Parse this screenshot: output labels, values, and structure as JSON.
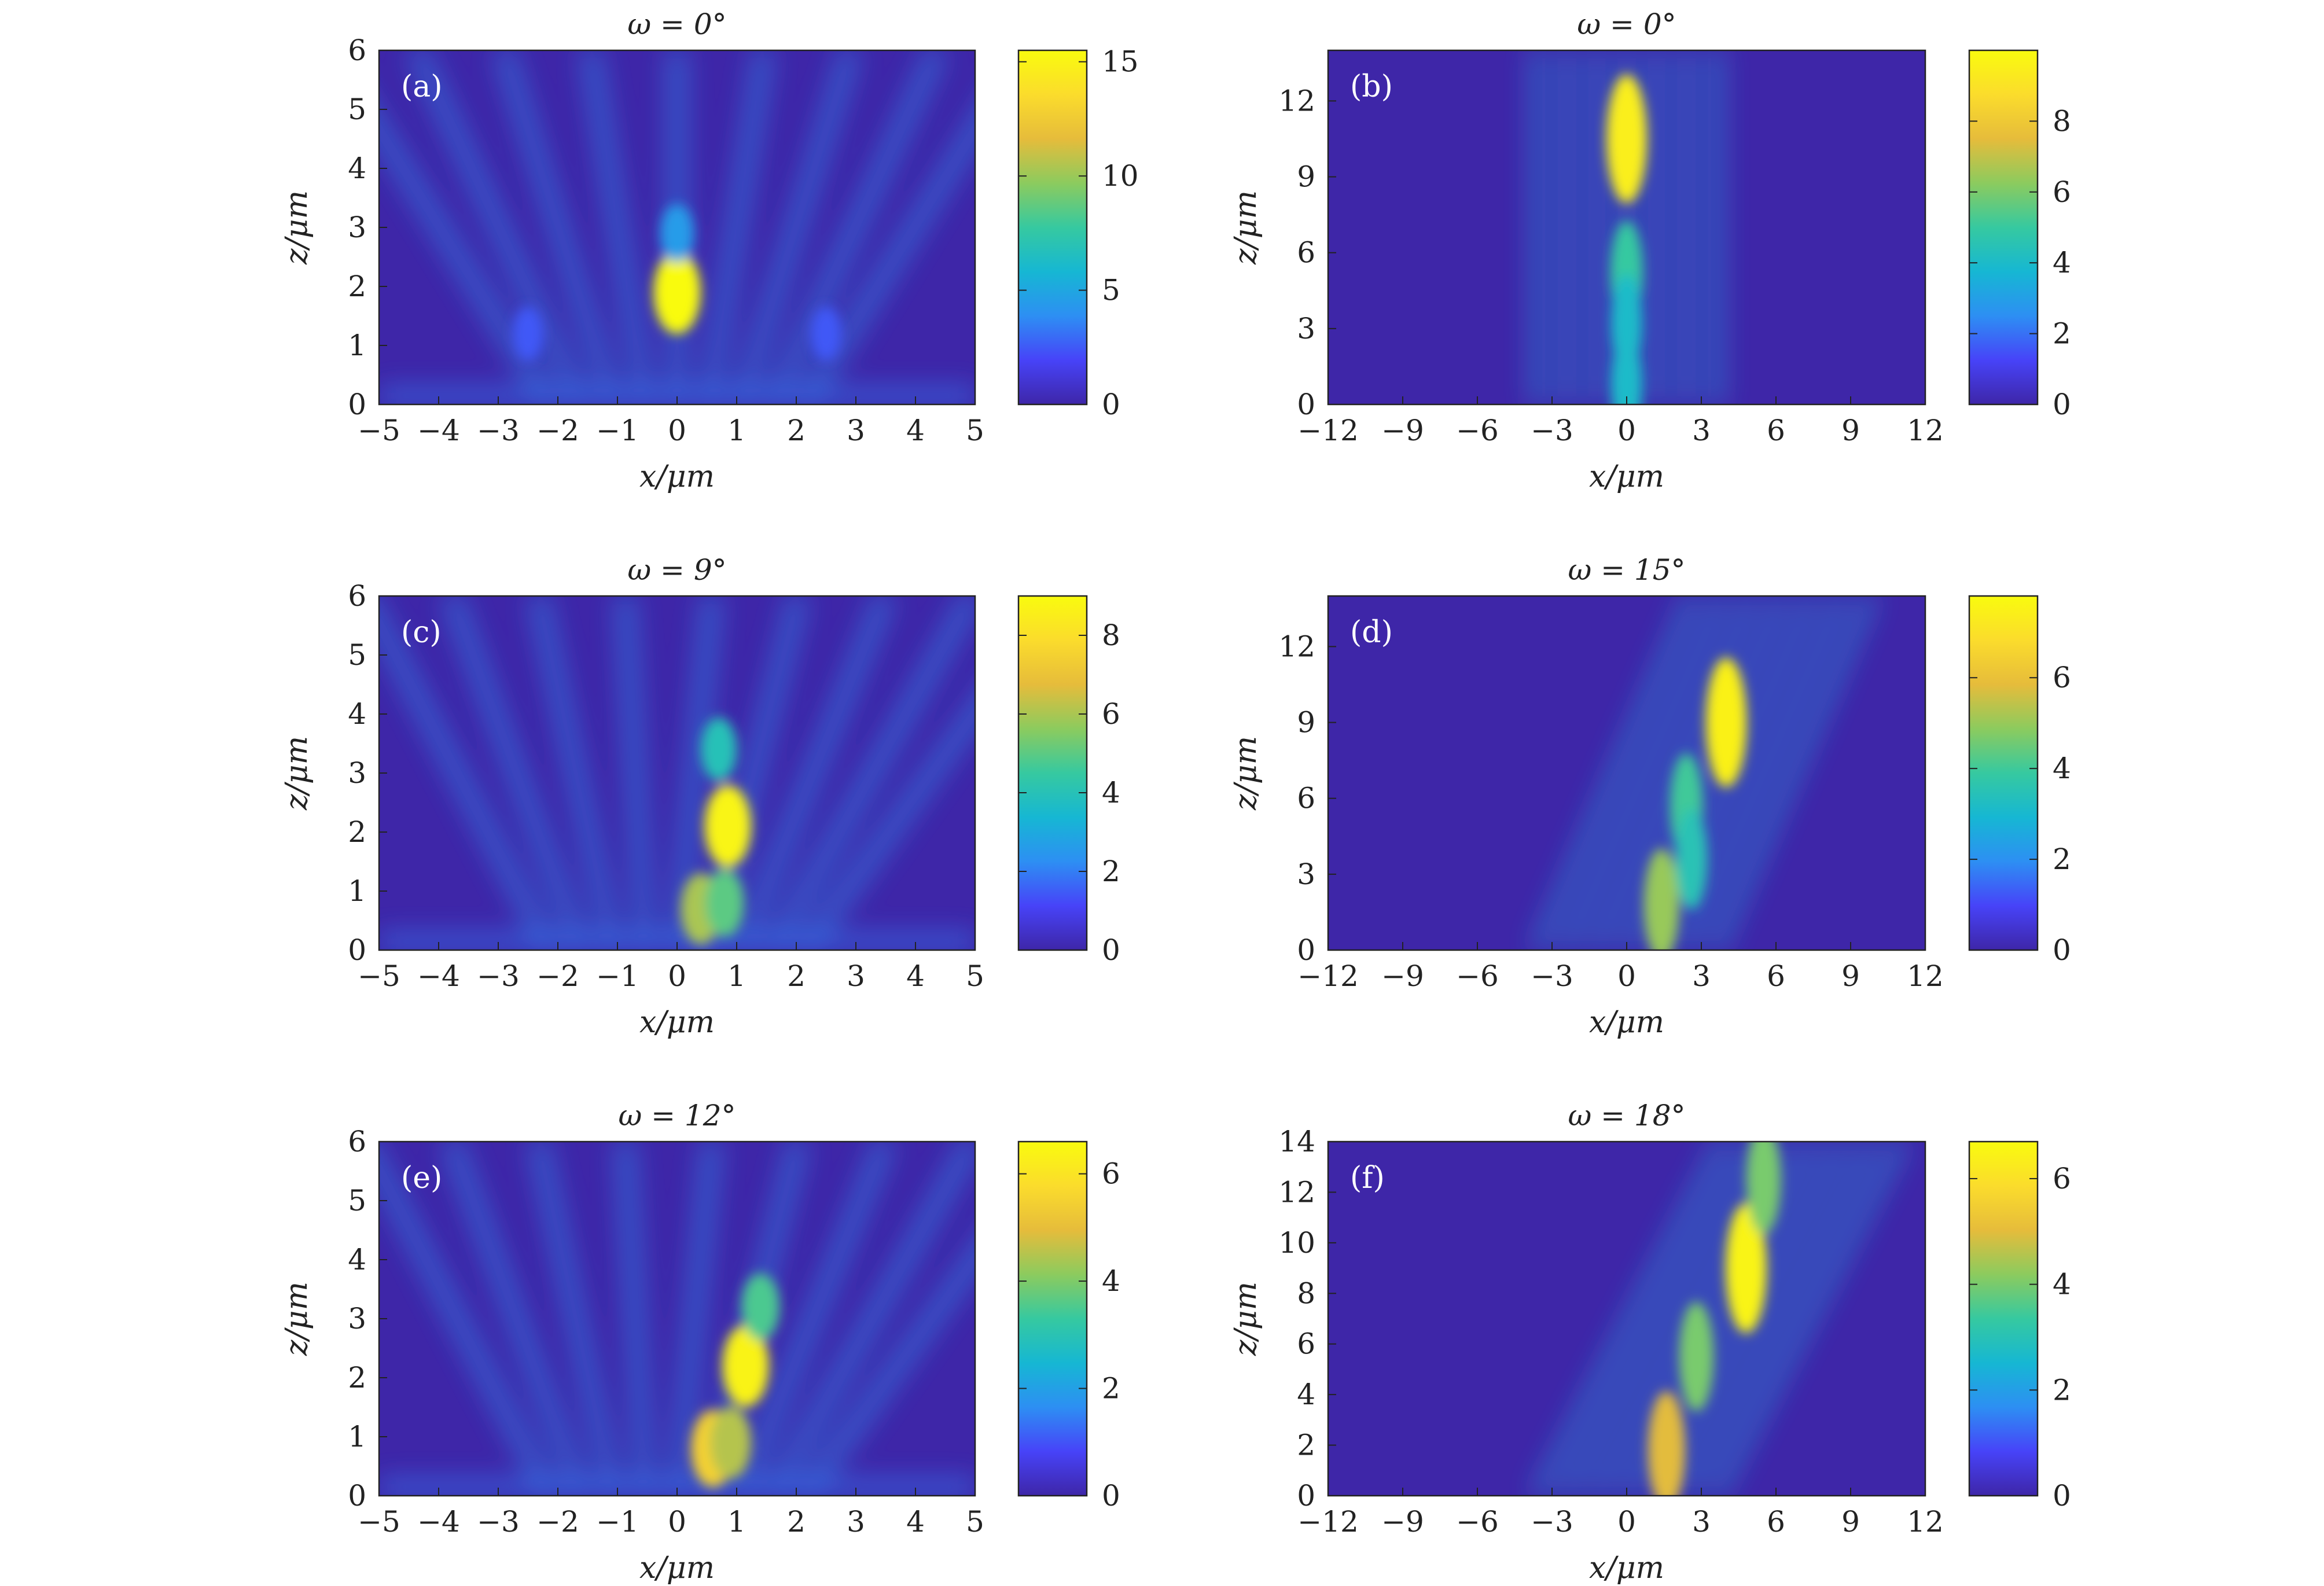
{
  "colors": {
    "colormap": [
      "#3e26a8",
      "#4743f8",
      "#2d8ff3",
      "#16b7d3",
      "#36c9a0",
      "#8ccb5e",
      "#e6bc3b",
      "#fbdc2c",
      "#f9fb0e"
    ]
  },
  "chart_data": [
    {
      "type": "heatmap",
      "panel_label": "(a)",
      "title": "ω = 0°",
      "xlabel": "x/μm",
      "ylabel": "z/μm",
      "xlim": [
        -5,
        5
      ],
      "ylim": [
        0,
        6
      ],
      "xticks": [
        -5,
        -4,
        -3,
        -2,
        -1,
        0,
        1,
        2,
        3,
        4,
        5
      ],
      "xtick_labels": [
        "−5",
        "−4",
        "−3",
        "−2",
        "−1",
        "0",
        "1",
        "2",
        "3",
        "4",
        "5"
      ],
      "yticks": [
        0,
        1,
        2,
        3,
        4,
        5,
        6
      ],
      "ytick_labels": [
        "0",
        "1",
        "2",
        "3",
        "4",
        "5",
        "6"
      ],
      "colorbar": {
        "min": 0,
        "max": 15.5,
        "ticks": [
          0,
          5,
          10,
          15
        ],
        "tick_labels": [
          "0",
          "5",
          "10",
          "15"
        ]
      },
      "hotspots": [
        {
          "x": 0.0,
          "z": 1.9,
          "value": 15.5
        },
        {
          "x": 0.0,
          "z": 2.9,
          "value": 4.5
        },
        {
          "x": -2.5,
          "z": 1.2,
          "value": 2.5
        },
        {
          "x": 2.5,
          "z": 1.2,
          "value": 2.5
        }
      ]
    },
    {
      "type": "heatmap",
      "panel_label": "(b)",
      "title": "ω = 0°",
      "xlabel": "x/μm",
      "ylabel": "z/μm",
      "xlim": [
        -12,
        12
      ],
      "ylim": [
        0,
        14
      ],
      "xticks": [
        -12,
        -9,
        -6,
        -3,
        0,
        3,
        6,
        9,
        12
      ],
      "xtick_labels": [
        "−12",
        "−9",
        "−6",
        "−3",
        "0",
        "3",
        "6",
        "9",
        "12"
      ],
      "yticks": [
        0,
        3,
        6,
        9,
        12
      ],
      "ytick_labels": [
        "0",
        "3",
        "6",
        "9",
        "12"
      ],
      "colorbar": {
        "min": 0,
        "max": 10,
        "ticks": [
          0,
          2,
          4,
          6,
          8
        ],
        "tick_labels": [
          "0",
          "2",
          "4",
          "6",
          "8"
        ]
      },
      "hotspots": [
        {
          "x": 0.0,
          "z": 10.5,
          "value": 9.5
        },
        {
          "x": 0.0,
          "z": 5.2,
          "value": 5.0
        },
        {
          "x": 0.0,
          "z": 3.2,
          "value": 4.0
        },
        {
          "x": 0.0,
          "z": 0.8,
          "value": 4.0
        }
      ]
    },
    {
      "type": "heatmap",
      "panel_label": "(c)",
      "title": "ω = 9°",
      "xlabel": "x/μm",
      "ylabel": "z/μm",
      "xlim": [
        -5,
        5
      ],
      "ylim": [
        0,
        6
      ],
      "xticks": [
        -5,
        -4,
        -3,
        -2,
        -1,
        0,
        1,
        2,
        3,
        4,
        5
      ],
      "xtick_labels": [
        "−5",
        "−4",
        "−3",
        "−2",
        "−1",
        "0",
        "1",
        "2",
        "3",
        "4",
        "5"
      ],
      "yticks": [
        0,
        1,
        2,
        3,
        4,
        5,
        6
      ],
      "ytick_labels": [
        "0",
        "1",
        "2",
        "3",
        "4",
        "5",
        "6"
      ],
      "colorbar": {
        "min": 0,
        "max": 9,
        "ticks": [
          0,
          2,
          4,
          6,
          8
        ],
        "tick_labels": [
          "0",
          "2",
          "4",
          "6",
          "8"
        ]
      },
      "hotspots": [
        {
          "x": 0.85,
          "z": 2.1,
          "value": 8.8
        },
        {
          "x": 0.4,
          "z": 0.7,
          "value": 6.0
        },
        {
          "x": 0.8,
          "z": 0.8,
          "value": 5.0
        },
        {
          "x": 0.7,
          "z": 3.4,
          "value": 4.0
        }
      ]
    },
    {
      "type": "heatmap",
      "panel_label": "(d)",
      "title": "ω = 15°",
      "xlabel": "x/μm",
      "ylabel": "z/μm",
      "xlim": [
        -12,
        12
      ],
      "ylim": [
        0,
        14
      ],
      "xticks": [
        -12,
        -9,
        -6,
        -3,
        0,
        3,
        6,
        9,
        12
      ],
      "xtick_labels": [
        "−12",
        "−9",
        "−6",
        "−3",
        "0",
        "3",
        "6",
        "9",
        "12"
      ],
      "yticks": [
        0,
        3,
        6,
        9,
        12
      ],
      "ytick_labels": [
        "0",
        "3",
        "6",
        "9",
        "12"
      ],
      "colorbar": {
        "min": 0,
        "max": 7.8,
        "ticks": [
          0,
          2,
          4,
          6
        ],
        "tick_labels": [
          "0",
          "2",
          "4",
          "6"
        ]
      },
      "hotspots": [
        {
          "x": 4.0,
          "z": 9.0,
          "value": 7.5
        },
        {
          "x": 2.4,
          "z": 5.7,
          "value": 4.0
        },
        {
          "x": 1.4,
          "z": 1.8,
          "value": 5.0
        },
        {
          "x": 2.6,
          "z": 3.6,
          "value": 3.5
        }
      ]
    },
    {
      "type": "heatmap",
      "panel_label": "(e)",
      "title": "ω = 12°",
      "xlabel": "x/μm",
      "ylabel": "z/μm",
      "xlim": [
        -5,
        5
      ],
      "ylim": [
        0,
        6
      ],
      "xticks": [
        -5,
        -4,
        -3,
        -2,
        -1,
        0,
        1,
        2,
        3,
        4,
        5
      ],
      "xtick_labels": [
        "−5",
        "−4",
        "−3",
        "−2",
        "−1",
        "0",
        "1",
        "2",
        "3",
        "4",
        "5"
      ],
      "yticks": [
        0,
        1,
        2,
        3,
        4,
        5,
        6
      ],
      "ytick_labels": [
        "0",
        "1",
        "2",
        "3",
        "4",
        "5",
        "6"
      ],
      "colorbar": {
        "min": 0,
        "max": 6.6,
        "ticks": [
          0,
          2,
          4,
          6
        ],
        "tick_labels": [
          "0",
          "2",
          "4",
          "6"
        ]
      },
      "hotspots": [
        {
          "x": 1.15,
          "z": 2.2,
          "value": 6.4
        },
        {
          "x": 0.6,
          "z": 0.8,
          "value": 5.5
        },
        {
          "x": 0.9,
          "z": 0.9,
          "value": 4.5
        },
        {
          "x": 1.4,
          "z": 3.2,
          "value": 3.5
        }
      ]
    },
    {
      "type": "heatmap",
      "panel_label": "(f)",
      "title": "ω = 18°",
      "xlabel": "x/μm",
      "ylabel": "z/μm",
      "xlim": [
        -12,
        12
      ],
      "ylim": [
        0,
        14
      ],
      "xticks": [
        -12,
        -9,
        -6,
        -3,
        0,
        3,
        6,
        9,
        12
      ],
      "xtick_labels": [
        "−12",
        "−9",
        "−6",
        "−3",
        "0",
        "3",
        "6",
        "9",
        "12"
      ],
      "yticks": [
        0,
        2,
        4,
        6,
        8,
        10,
        12,
        14
      ],
      "ytick_labels": [
        "0",
        "2",
        "4",
        "6",
        "8",
        "10",
        "12",
        "14"
      ],
      "colorbar": {
        "min": 0,
        "max": 6.7,
        "ticks": [
          0,
          2,
          4,
          6
        ],
        "tick_labels": [
          "0",
          "2",
          "4",
          "6"
        ]
      },
      "hotspots": [
        {
          "x": 4.8,
          "z": 9.0,
          "value": 6.5
        },
        {
          "x": 2.8,
          "z": 5.5,
          "value": 4.0
        },
        {
          "x": 1.6,
          "z": 1.8,
          "value": 5.0
        },
        {
          "x": 5.5,
          "z": 12.5,
          "value": 4.0
        }
      ]
    }
  ]
}
